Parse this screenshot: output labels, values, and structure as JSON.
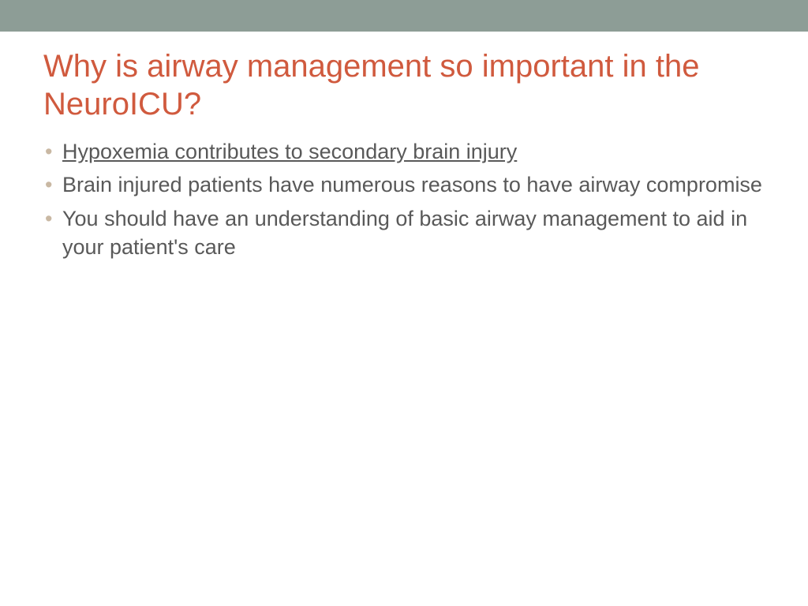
{
  "slide": {
    "top_bar_color": "#8d9d96",
    "title": "Why is airway management so important in the NeuroICU?",
    "title_color": "#d05a3e",
    "title_fontsize": 40,
    "body_color": "#595959",
    "body_fontsize": 27,
    "bullet_marker_color": "#c9b8a3",
    "bullets": [
      {
        "text": "Hypoxemia contributes to secondary brain injury",
        "underlined": true
      },
      {
        "text": "Brain injured patients have numerous reasons to have airway compromise",
        "underlined": false
      },
      {
        "text": "You should have an understanding of basic airway management to aid in your patient's care",
        "underlined": false
      }
    ]
  }
}
